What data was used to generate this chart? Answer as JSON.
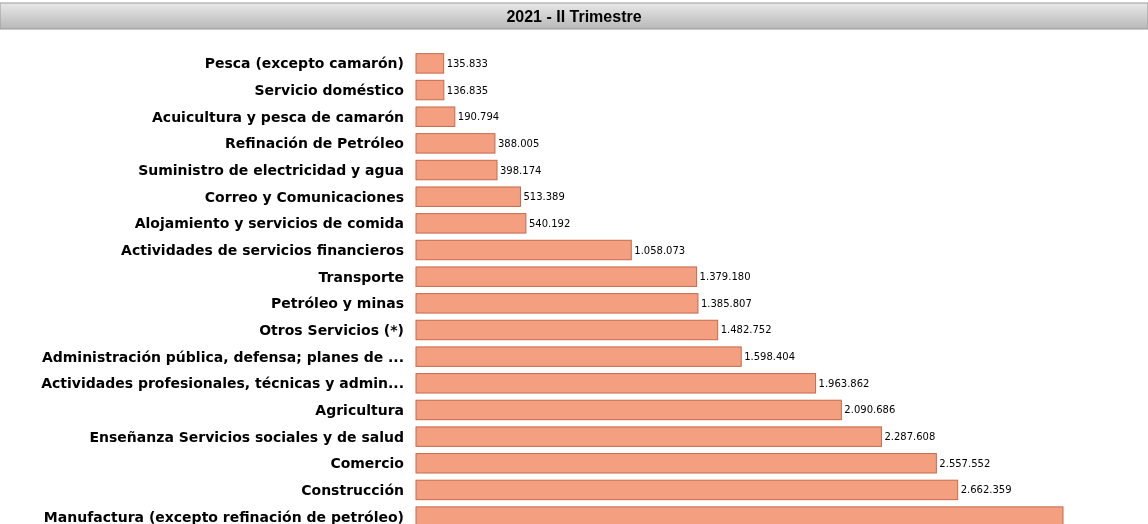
{
  "chart_data": {
    "type": "bar",
    "orientation": "horizontal",
    "title": "2021 - II Trimestre",
    "categories": [
      "Pesca (excepto camarón)",
      "Servicio doméstico",
      "Acuicultura y pesca de camarón",
      "Refinación de Petróleo",
      "Suministro de electricidad y agua",
      "Correo y Comunicaciones",
      "Alojamiento y servicios de comida",
      "Actividades de servicios financieros",
      "Transporte",
      "Petróleo y minas",
      "Otros Servicios (*)",
      "Administración pública, defensa; planes de ...",
      "Actividades profesionales, técnicas y admin...",
      "Agricultura",
      "Enseñanza Servicios sociales y de salud",
      "Comercio",
      "Construcción",
      "Manufactura (excepto refinación de petróleo)"
    ],
    "values": [
      135833,
      136835,
      190794,
      388005,
      398174,
      513389,
      540192,
      1058073,
      1379180,
      1385807,
      1482752,
      1598404,
      1963862,
      2090686,
      2287608,
      2557552,
      2662359,
      3180000
    ],
    "value_labels": [
      "135.833",
      "136.835",
      "190.794",
      "388.005",
      "398.174",
      "513.389",
      "540.192",
      "1.058.073",
      "1.379.180",
      "1.385.807",
      "1.482.752",
      "1.598.404",
      "1.963.862",
      "2.090.686",
      "2.287.608",
      "2.557.552",
      "2.662.359",
      null
    ],
    "color": "#f4a080"
  }
}
